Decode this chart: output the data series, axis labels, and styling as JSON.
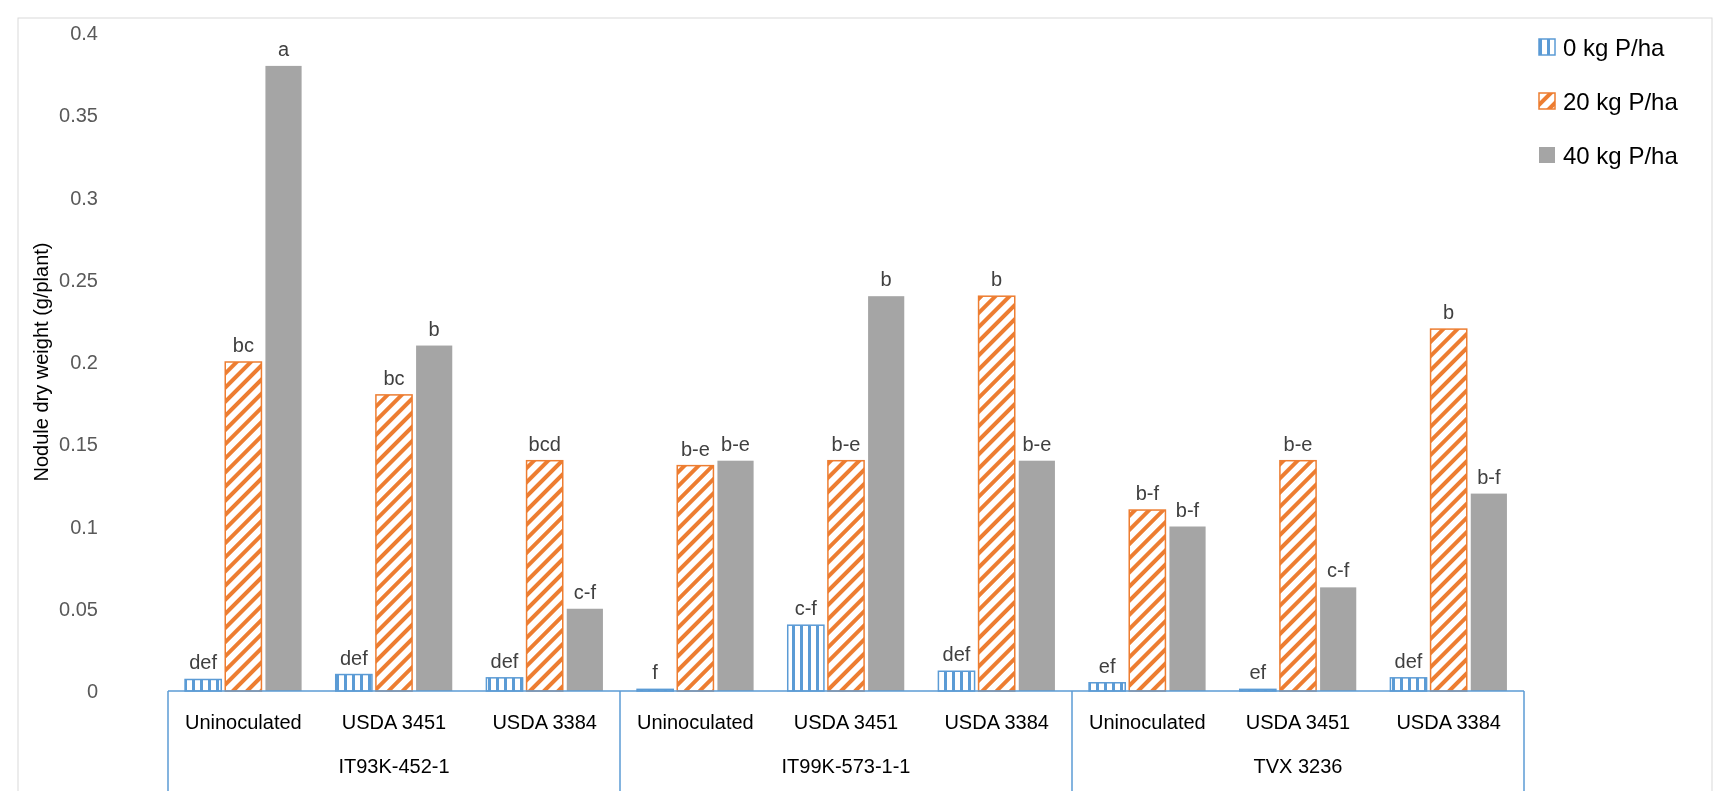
{
  "chart_data": {
    "type": "bar",
    "ylabel": "Nodule dry weight (g/plant)",
    "categories": [
      "Uninoculated",
      "USDA 3451",
      "USDA 3384",
      "Uninoculated",
      "USDA 3451",
      "USDA 3384",
      "Uninoculated",
      "USDA 3451",
      "USDA 3384"
    ],
    "series": [
      {
        "name": "0 kg P/ha",
        "color": "#5b9bd5",
        "values": [
          0.007,
          0.01,
          0.008,
          0.001,
          0.04,
          0.012,
          0.005,
          0.001,
          0.008
        ],
        "value_labels": [
          "def",
          "def",
          "def",
          "f",
          "c-f",
          "def",
          "ef",
          "ef",
          "def"
        ]
      },
      {
        "name": "20 kg P/ha",
        "color": "#ed7d31",
        "values": [
          0.2,
          0.18,
          0.14,
          0.137,
          0.14,
          0.24,
          0.11,
          0.14,
          0.22
        ],
        "value_labels": [
          "bc",
          "bc",
          "bcd",
          "b-e",
          "b-e",
          "b",
          "b-f",
          "b-e",
          "b"
        ]
      },
      {
        "name": "40 kg P/ha",
        "color": "#a5a5a5",
        "values": [
          0.38,
          0.21,
          0.05,
          0.14,
          0.24,
          0.14,
          0.1,
          0.063,
          0.12
        ],
        "value_labels": [
          "a",
          "b",
          "c-f",
          "b-e",
          "b",
          "b-e",
          "b-f",
          "c-f",
          "b-f"
        ]
      }
    ],
    "ylim": [
      0,
      0.4
    ],
    "yticks": [
      0,
      0.05,
      0.1,
      0.15,
      0.2,
      0.25,
      0.3,
      0.35,
      0.4
    ],
    "legend": "top right",
    "annotations": [
      "IT93K-452-1",
      "IT99K-573-1-1",
      "TVX 3236"
    ]
  }
}
